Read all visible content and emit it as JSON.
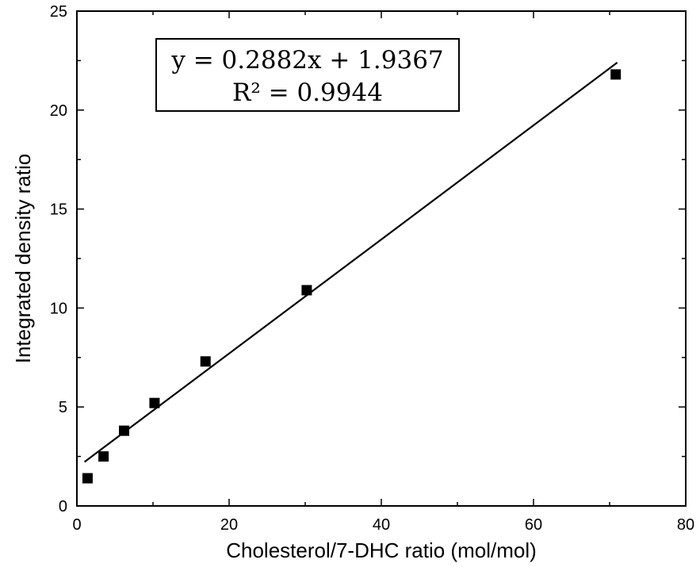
{
  "chart_data": {
    "type": "scatter",
    "title": "",
    "xlabel": "Cholesterol/7-DHC ratio (mol/mol)",
    "ylabel": "Integrated density ratio",
    "xlim": [
      0,
      80
    ],
    "ylim": [
      0,
      25
    ],
    "x_ticks": [
      0,
      20,
      40,
      60,
      80
    ],
    "y_ticks": [
      0,
      5,
      10,
      15,
      20,
      25
    ],
    "grid": false,
    "legend": "none",
    "marker_color": "#000000",
    "fit_line_color": "#000000",
    "series": [
      {
        "marker": "square",
        "x": [
          1.4,
          3.5,
          6.2,
          10.2,
          16.9,
          30.2,
          70.8
        ],
        "y": [
          1.4,
          2.5,
          3.8,
          5.2,
          7.3,
          10.9,
          21.8
        ]
      }
    ],
    "fit_line": {
      "slope": 0.2882,
      "intercept": 1.9367,
      "x_range": [
        1,
        71
      ]
    },
    "annotation": {
      "equation": "y = 0.2882x + 1.9367",
      "r_squared": "R² = 0.9944"
    }
  }
}
